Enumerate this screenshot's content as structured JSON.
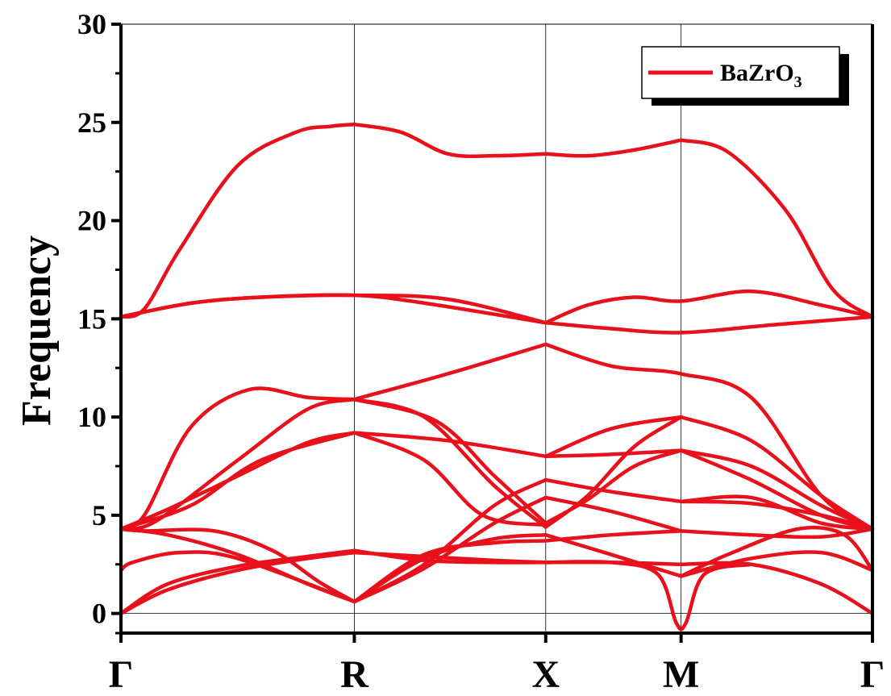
{
  "chart_data": {
    "type": "line",
    "title": "",
    "ylabel": "Frequency",
    "xlabel": "",
    "ylim": [
      -1,
      30
    ],
    "y_ticks": [
      0,
      5,
      10,
      15,
      20,
      25,
      30
    ],
    "y_tick_labels": [
      "0",
      "5",
      "10",
      "15",
      "20",
      "25",
      "30"
    ],
    "x_path_points": [
      0,
      1,
      1.82,
      2.4,
      3.22
    ],
    "x_symmetry_labels": [
      "Γ",
      "R",
      "X",
      "M",
      "Γ"
    ],
    "vertical_gridlines_at_symmetry_points": true,
    "line_color": "#e8101a",
    "legend": {
      "position": "top-right",
      "label_base": "BaZrO",
      "label_subscript": "3"
    },
    "series": [
      {
        "x": [
          0,
          0.1,
          0.25,
          0.5,
          0.75,
          0.9,
          1
        ],
        "y": [
          15.1,
          15.5,
          18.5,
          22.8,
          24.5,
          24.8,
          24.9
        ]
      },
      {
        "x": [
          1,
          1.2,
          1.4,
          1.6,
          1.82
        ],
        "y": [
          24.9,
          24.5,
          23.4,
          23.3,
          23.4
        ]
      },
      {
        "x": [
          1.82,
          2.0,
          2.2,
          2.4
        ],
        "y": [
          23.4,
          23.3,
          23.6,
          24.1
        ]
      },
      {
        "x": [
          2.4,
          2.6,
          2.85,
          3.05,
          3.22
        ],
        "y": [
          24.1,
          23.5,
          20.5,
          16.5,
          15.1
        ]
      },
      {
        "x": [
          0,
          0.3,
          0.6,
          1,
          1.4,
          1.82
        ],
        "y": [
          15.1,
          15.8,
          16.1,
          16.2,
          16.0,
          14.8
        ]
      },
      {
        "x": [
          0,
          0.3,
          0.6,
          1,
          1.3,
          1.82
        ],
        "y": [
          15.1,
          15.8,
          16.1,
          16.2,
          15.8,
          14.8
        ]
      },
      {
        "x": [
          1.82,
          2.0,
          2.2,
          2.4,
          2.7,
          3.0,
          3.22
        ],
        "y": [
          14.8,
          15.7,
          16.1,
          15.9,
          16.4,
          15.7,
          15.1
        ]
      },
      {
        "x": [
          1.82,
          2.1,
          2.4,
          2.8,
          3.22
        ],
        "y": [
          14.8,
          14.5,
          14.3,
          14.7,
          15.1
        ]
      },
      {
        "x": [
          1,
          1.4,
          1.82
        ],
        "y": [
          10.9,
          12.2,
          13.7
        ]
      },
      {
        "x": [
          1.82,
          2.1,
          2.4,
          2.7,
          3.0,
          3.22
        ],
        "y": [
          13.7,
          12.6,
          12.2,
          11.0,
          6.0,
          4.3
        ]
      },
      {
        "x": [
          0,
          0.1,
          0.3,
          0.55,
          0.8,
          1
        ],
        "y": [
          4.3,
          5.0,
          9.5,
          11.4,
          11.0,
          10.9
        ]
      },
      {
        "x": [
          0,
          0.15,
          0.5,
          0.8,
          1
        ],
        "y": [
          4.3,
          4.7,
          7.8,
          10.4,
          10.9
        ]
      },
      {
        "x": [
          1,
          1.3,
          1.6,
          1.82
        ],
        "y": [
          10.9,
          10.0,
          6.5,
          4.4
        ]
      },
      {
        "x": [
          1,
          1.35,
          1.6,
          1.82
        ],
        "y": [
          10.9,
          9.8,
          7.0,
          4.6
        ]
      },
      {
        "x": [
          1.82,
          2.0,
          2.2,
          2.4
        ],
        "y": [
          4.4,
          6.0,
          8.5,
          10.0
        ]
      },
      {
        "x": [
          1.82,
          2.1,
          2.4
        ],
        "y": [
          8.0,
          9.4,
          10.0
        ]
      },
      {
        "x": [
          2.4,
          2.7,
          3.0,
          3.22
        ],
        "y": [
          10.0,
          8.8,
          6.0,
          4.3
        ]
      },
      {
        "x": [
          0,
          0.2,
          0.5,
          0.8,
          1
        ],
        "y": [
          4.3,
          5.3,
          7.0,
          8.7,
          9.2
        ]
      },
      {
        "x": [
          0,
          0.3,
          0.6,
          1
        ],
        "y": [
          4.3,
          5.5,
          7.8,
          9.2
        ]
      },
      {
        "x": [
          1,
          1.4,
          1.82
        ],
        "y": [
          9.2,
          8.8,
          8.0
        ]
      },
      {
        "x": [
          1,
          1.3,
          1.55,
          1.82
        ],
        "y": [
          9.2,
          7.8,
          5.0,
          4.5
        ]
      },
      {
        "x": [
          1.82,
          2.1,
          2.4
        ],
        "y": [
          8.0,
          8.1,
          8.3
        ]
      },
      {
        "x": [
          1.82,
          2.0,
          2.2,
          2.4
        ],
        "y": [
          4.6,
          5.8,
          7.5,
          8.3
        ]
      },
      {
        "x": [
          2.4,
          2.7,
          3.0,
          3.22
        ],
        "y": [
          8.3,
          7.5,
          5.5,
          4.3
        ]
      },
      {
        "x": [
          2.4,
          2.7,
          3.0,
          3.22
        ],
        "y": [
          8.3,
          6.8,
          5.0,
          4.3
        ]
      },
      {
        "x": [
          1,
          1.3,
          1.6,
          1.82
        ],
        "y": [
          0.6,
          2.5,
          5.5,
          6.8
        ]
      },
      {
        "x": [
          1,
          1.3,
          1.6,
          1.82
        ],
        "y": [
          0.6,
          2.3,
          4.6,
          5.9
        ]
      },
      {
        "x": [
          1.82,
          2.1,
          2.4
        ],
        "y": [
          6.8,
          6.2,
          5.7
        ]
      },
      {
        "x": [
          1.82,
          2.1,
          2.4
        ],
        "y": [
          5.9,
          5.2,
          4.2
        ]
      },
      {
        "x": [
          2.4,
          2.7,
          3.0,
          3.22
        ],
        "y": [
          5.7,
          5.9,
          4.6,
          4.3
        ]
      },
      {
        "x": [
          2.4,
          2.7,
          3.0,
          3.22
        ],
        "y": [
          5.7,
          5.6,
          5.0,
          4.3
        ]
      },
      {
        "x": [
          0,
          0.1,
          0.4,
          0.65,
          0.85,
          1
        ],
        "y": [
          4.3,
          4.2,
          4.2,
          3.2,
          1.6,
          0.6
        ]
      },
      {
        "x": [
          0,
          0.2,
          0.5,
          0.8,
          1
        ],
        "y": [
          4.3,
          4.0,
          3.0,
          1.5,
          0.6
        ]
      },
      {
        "x": [
          0,
          0.05,
          0.25,
          0.5,
          1
        ],
        "y": [
          2.2,
          2.6,
          3.1,
          2.8,
          0.6
        ]
      },
      {
        "x": [
          0,
          0.2,
          0.5,
          0.8,
          1
        ],
        "y": [
          0,
          1.5,
          2.4,
          2.9,
          3.2
        ]
      },
      {
        "x": [
          0,
          0.2,
          0.5,
          0.8,
          1
        ],
        "y": [
          0,
          1.2,
          2.2,
          2.8,
          3.1
        ]
      },
      {
        "x": [
          1,
          1.3,
          1.6,
          1.82
        ],
        "y": [
          3.2,
          2.7,
          2.6,
          2.6
        ]
      },
      {
        "x": [
          1,
          1.3,
          1.6,
          1.82
        ],
        "y": [
          3.1,
          2.9,
          2.7,
          2.6
        ]
      },
      {
        "x": [
          1,
          1.3,
          1.6,
          1.82
        ],
        "y": [
          0.6,
          3.0,
          3.6,
          3.7
        ]
      },
      {
        "x": [
          1,
          1.3,
          1.6,
          1.82
        ],
        "y": [
          0.6,
          2.8,
          3.8,
          4.0
        ]
      },
      {
        "x": [
          1.82,
          2.1,
          2.4
        ],
        "y": [
          2.6,
          2.6,
          2.5
        ]
      },
      {
        "x": [
          1.82,
          2.1,
          2.4
        ],
        "y": [
          3.7,
          4.0,
          4.2
        ]
      },
      {
        "x": [
          1.82,
          2.1,
          2.4
        ],
        "y": [
          4.0,
          3.0,
          1.9
        ]
      },
      {
        "x": [
          2.4,
          2.7,
          3.0,
          3.22
        ],
        "y": [
          2.5,
          2.5,
          1.5,
          0
        ]
      },
      {
        "x": [
          2.4,
          2.7,
          3.0,
          3.22
        ],
        "y": [
          4.2,
          4.0,
          3.9,
          4.3
        ]
      },
      {
        "x": [
          2.4,
          2.6,
          2.9,
          3.1,
          3.22
        ],
        "y": [
          1.9,
          3.0,
          4.3,
          4.0,
          2.2
        ]
      },
      {
        "x": [
          2.4,
          2.7,
          3.0,
          3.22
        ],
        "y": [
          1.9,
          2.8,
          3.1,
          2.2
        ]
      },
      {
        "x": [
          1.82,
          2.1,
          2.3,
          2.38,
          2.42,
          2.5,
          2.7
        ],
        "y": [
          2.6,
          2.6,
          2.0,
          -0.5,
          -0.5,
          2.0,
          2.5
        ]
      }
    ]
  }
}
